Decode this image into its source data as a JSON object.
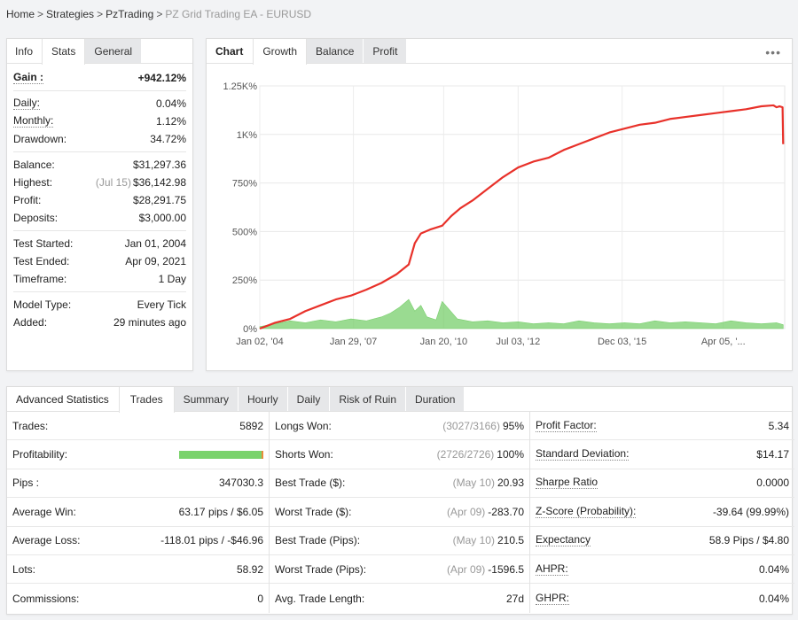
{
  "breadcrumb": {
    "items": [
      "Home",
      "Strategies",
      "PzTrading"
    ],
    "separator": ">",
    "current": "PZ Grid Trading EA - EURUSD"
  },
  "left_panel": {
    "tabs": [
      "Info",
      "Stats",
      "General"
    ],
    "gain": {
      "label": "Gain :",
      "value": "+942.12%"
    },
    "daily": {
      "label": "Daily:",
      "value": "0.04%"
    },
    "monthly": {
      "label": "Monthly:",
      "value": "1.12%"
    },
    "drawdown": {
      "label": "Drawdown:",
      "value": "34.72%"
    },
    "balance": {
      "label": "Balance:",
      "value": "$31,297.36"
    },
    "highest": {
      "label": "Highest:",
      "date": "(Jul 15)",
      "value": "$36,142.98"
    },
    "profit": {
      "label": "Profit:",
      "value": "$28,291.75"
    },
    "deposits": {
      "label": "Deposits:",
      "value": "$3,000.00"
    },
    "test_started": {
      "label": "Test Started:",
      "value": "Jan 01, 2004"
    },
    "test_ended": {
      "label": "Test Ended:",
      "value": "Apr 09, 2021"
    },
    "timeframe": {
      "label": "Timeframe:",
      "value": "1 Day"
    },
    "model_type": {
      "label": "Model Type:",
      "value": "Every Tick"
    },
    "added": {
      "label": "Added:",
      "value": "29 minutes ago"
    }
  },
  "chart_panel": {
    "tabs": [
      "Chart",
      "Growth",
      "Balance",
      "Profit"
    ],
    "menu_icon": "more-dots-icon"
  },
  "chart_data": {
    "type": "line",
    "x_tick_labels": [
      "Jan 02, '04",
      "Jan 29, '07",
      "Jan 20, '10",
      "Jul 03, '12",
      "Dec 03, '15",
      "Apr 05, '..."
    ],
    "y_tick_labels": [
      "0%",
      "250%",
      "500%",
      "750%",
      "1K%",
      "1.25K%"
    ],
    "y_tick_values": [
      0,
      250,
      500,
      750,
      1000,
      1250
    ],
    "ylim": [
      0,
      1250
    ],
    "x_range_years": [
      2004.0,
      2021.27
    ],
    "grid": true,
    "series": [
      {
        "color": "#e8312a",
        "x": [
          2004.0,
          2004.5,
          2005.0,
          2005.5,
          2006.0,
          2006.5,
          2007.0,
          2007.5,
          2008.0,
          2008.5,
          2008.9,
          2009.1,
          2009.3,
          2009.6,
          2010.0,
          2010.3,
          2010.6,
          2011.0,
          2011.5,
          2012.0,
          2012.5,
          2013.0,
          2013.5,
          2014.0,
          2014.5,
          2015.0,
          2015.5,
          2016.0,
          2016.5,
          2017.0,
          2017.5,
          2018.0,
          2018.5,
          2019.0,
          2019.5,
          2020.0,
          2020.5,
          2020.9,
          2021.0,
          2021.1,
          2021.2,
          2021.22
        ],
        "y": [
          0,
          30,
          50,
          90,
          120,
          150,
          170,
          200,
          235,
          280,
          330,
          440,
          490,
          510,
          530,
          580,
          620,
          660,
          720,
          780,
          830,
          860,
          880,
          920,
          950,
          980,
          1010,
          1030,
          1050,
          1060,
          1080,
          1090,
          1100,
          1110,
          1120,
          1130,
          1145,
          1150,
          1140,
          1145,
          1140,
          950
        ]
      },
      {
        "color": "#78cf6c",
        "x": [
          2004.0,
          2004.5,
          2005.0,
          2005.5,
          2006.0,
          2006.5,
          2007.0,
          2007.5,
          2008.0,
          2008.3,
          2008.6,
          2008.9,
          2009.1,
          2009.3,
          2009.5,
          2009.8,
          2010.0,
          2010.5,
          2011.0,
          2011.5,
          2012.0,
          2012.5,
          2013.0,
          2013.5,
          2014.0,
          2014.5,
          2015.0,
          2015.5,
          2016.0,
          2016.5,
          2017.0,
          2017.5,
          2018.0,
          2018.5,
          2019.0,
          2019.5,
          2020.0,
          2020.5,
          2021.0,
          2021.22
        ],
        "y": [
          10,
          25,
          40,
          30,
          45,
          35,
          50,
          40,
          60,
          80,
          110,
          150,
          90,
          120,
          60,
          45,
          140,
          50,
          35,
          40,
          30,
          35,
          25,
          30,
          25,
          40,
          30,
          25,
          30,
          25,
          40,
          30,
          35,
          30,
          25,
          40,
          30,
          25,
          30,
          20
        ]
      }
    ]
  },
  "advanced": {
    "tabs": [
      "Advanced Statistics",
      "Trades",
      "Summary",
      "Hourly",
      "Daily",
      "Risk of Ruin",
      "Duration"
    ],
    "col1": [
      {
        "label": "Trades:",
        "value": "5892"
      },
      {
        "label": "Profitability:",
        "value": ""
      },
      {
        "label": "Pips :",
        "value": "347030.3"
      },
      {
        "label": "Average Win:",
        "value": "63.17 pips / $6.05"
      },
      {
        "label": "Average Loss:",
        "value": "-118.01 pips / -$46.96"
      },
      {
        "label": "Lots:",
        "value": "58.92"
      },
      {
        "label": "Commissions:",
        "value": "0"
      }
    ],
    "profitability_won_fraction": 0.98,
    "col2": [
      {
        "label": "Longs Won:",
        "muted": "(3027/3166)",
        "value": "95%"
      },
      {
        "label": "Shorts Won:",
        "muted": "(2726/2726)",
        "value": "100%"
      },
      {
        "label": "Best Trade ($):",
        "muted": "(May 10)",
        "value": "20.93"
      },
      {
        "label": "Worst Trade ($):",
        "muted": "(Apr 09)",
        "value": "-283.70"
      },
      {
        "label": "Best Trade (Pips):",
        "muted": "(May 10)",
        "value": "210.5"
      },
      {
        "label": "Worst Trade (Pips):",
        "muted": "(Apr 09)",
        "value": "-1596.5"
      },
      {
        "label": "Avg. Trade Length:",
        "muted": "",
        "value": "27d"
      }
    ],
    "col3": [
      {
        "label": "Profit Factor:",
        "value": "5.34"
      },
      {
        "label": "Standard Deviation:",
        "value": "$14.17"
      },
      {
        "label": "Sharpe Ratio",
        "value": "0.0000"
      },
      {
        "label": "Z-Score (Probability):",
        "value": "-39.64 (99.99%)"
      },
      {
        "label": "Expectancy",
        "value": "58.9 Pips / $4.80"
      },
      {
        "label": "AHPR:",
        "value": "0.04%"
      },
      {
        "label": "GHPR:",
        "value": "0.04%"
      }
    ]
  }
}
